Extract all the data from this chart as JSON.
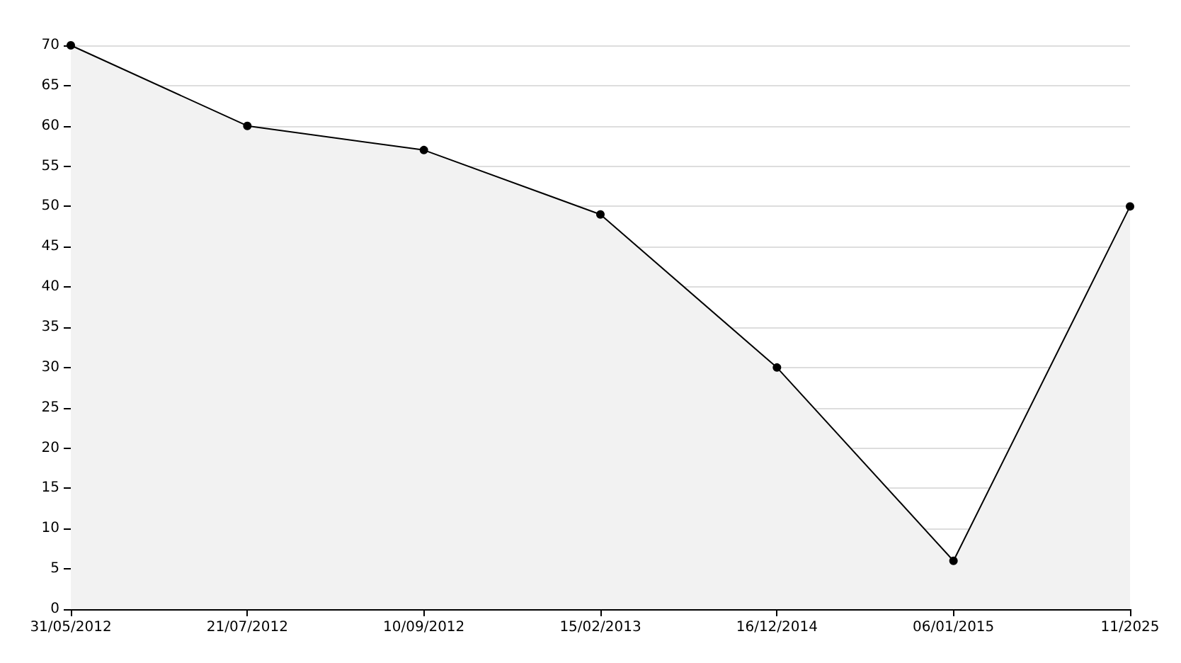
{
  "chart_data": {
    "type": "area",
    "categories": [
      "31/05/2012",
      "21/07/2012",
      "10/09/2012",
      "15/02/2013",
      "16/12/2014",
      "06/01/2015",
      "11/2025"
    ],
    "series": [
      {
        "color": "#000000",
        "values": [
          70,
          60,
          57,
          49,
          30,
          6,
          50
        ]
      }
    ],
    "ylim": [
      0,
      70
    ],
    "yticks": [
      0,
      5,
      10,
      15,
      20,
      25,
      30,
      35,
      40,
      45,
      50,
      55,
      60,
      65,
      70
    ],
    "grid": "y",
    "marker": "circle",
    "line_style": "solid"
  }
}
